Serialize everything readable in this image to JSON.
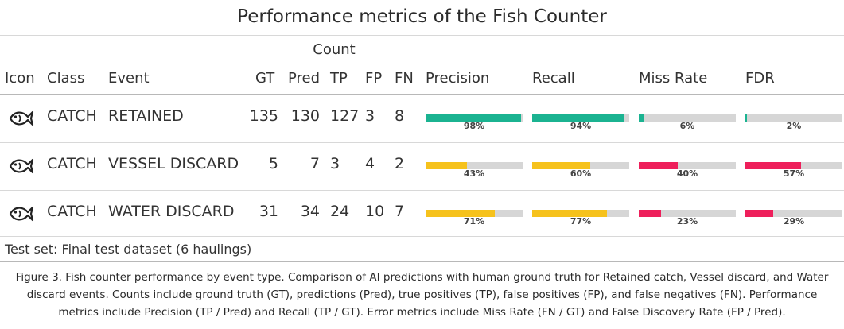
{
  "title": "Performance metrics of the Fish Counter",
  "group_header": "Count",
  "headers": {
    "icon": "Icon",
    "class": "Class",
    "event": "Event",
    "gt": "GT",
    "pred": "Pred",
    "tp": "TP",
    "fp": "FP",
    "fn": "FN",
    "precision": "Precision",
    "recall": "Recall",
    "miss_rate": "Miss Rate",
    "fdr": "FDR"
  },
  "colors": {
    "good": "#1bb391",
    "medium": "#f6c21c",
    "bad": "#ee1f5b",
    "track": "#d6d6d6"
  },
  "rows": [
    {
      "icon": "fish-icon",
      "class": "CATCH",
      "event": "RETAINED",
      "gt": "135",
      "pred": "130",
      "tp": "127",
      "fp": "3",
      "fn": "8",
      "precision": {
        "value": 98,
        "label": "98%",
        "color": "#1bb391"
      },
      "recall": {
        "value": 94,
        "label": "94%",
        "color": "#1bb391"
      },
      "miss_rate": {
        "value": 6,
        "label": "6%",
        "color": "#1bb391"
      },
      "fdr": {
        "value": 2,
        "label": "2%",
        "color": "#1bb391"
      }
    },
    {
      "icon": "fish-icon",
      "class": "CATCH",
      "event": "VESSEL DISCARD",
      "gt": "5",
      "pred": "7",
      "tp": "3",
      "fp": "4",
      "fn": "2",
      "precision": {
        "value": 43,
        "label": "43%",
        "color": "#f6c21c"
      },
      "recall": {
        "value": 60,
        "label": "60%",
        "color": "#f6c21c"
      },
      "miss_rate": {
        "value": 40,
        "label": "40%",
        "color": "#ee1f5b"
      },
      "fdr": {
        "value": 57,
        "label": "57%",
        "color": "#ee1f5b"
      }
    },
    {
      "icon": "fish-icon",
      "class": "CATCH",
      "event": "WATER DISCARD",
      "gt": "31",
      "pred": "34",
      "tp": "24",
      "fp": "10",
      "fn": "7",
      "precision": {
        "value": 71,
        "label": "71%",
        "color": "#f6c21c"
      },
      "recall": {
        "value": 77,
        "label": "77%",
        "color": "#f6c21c"
      },
      "miss_rate": {
        "value": 23,
        "label": "23%",
        "color": "#ee1f5b"
      },
      "fdr": {
        "value": 29,
        "label": "29%",
        "color": "#ee1f5b"
      }
    }
  ],
  "footer_note": "Test set: Final test dataset (6 haulings)",
  "caption": "Figure 3. Fish counter performance by event type. Comparison of AI predictions with human ground truth for Retained catch, Vessel discard, and Water discard events. Counts include ground truth (GT), predictions (Pred), true positives (TP), false positives (FP), and false negatives (FN). Performance metrics include Precision (TP / Pred) and Recall (TP / GT). Error metrics include Miss Rate (FN / GT) and False Discovery Rate (FP / Pred)."
}
